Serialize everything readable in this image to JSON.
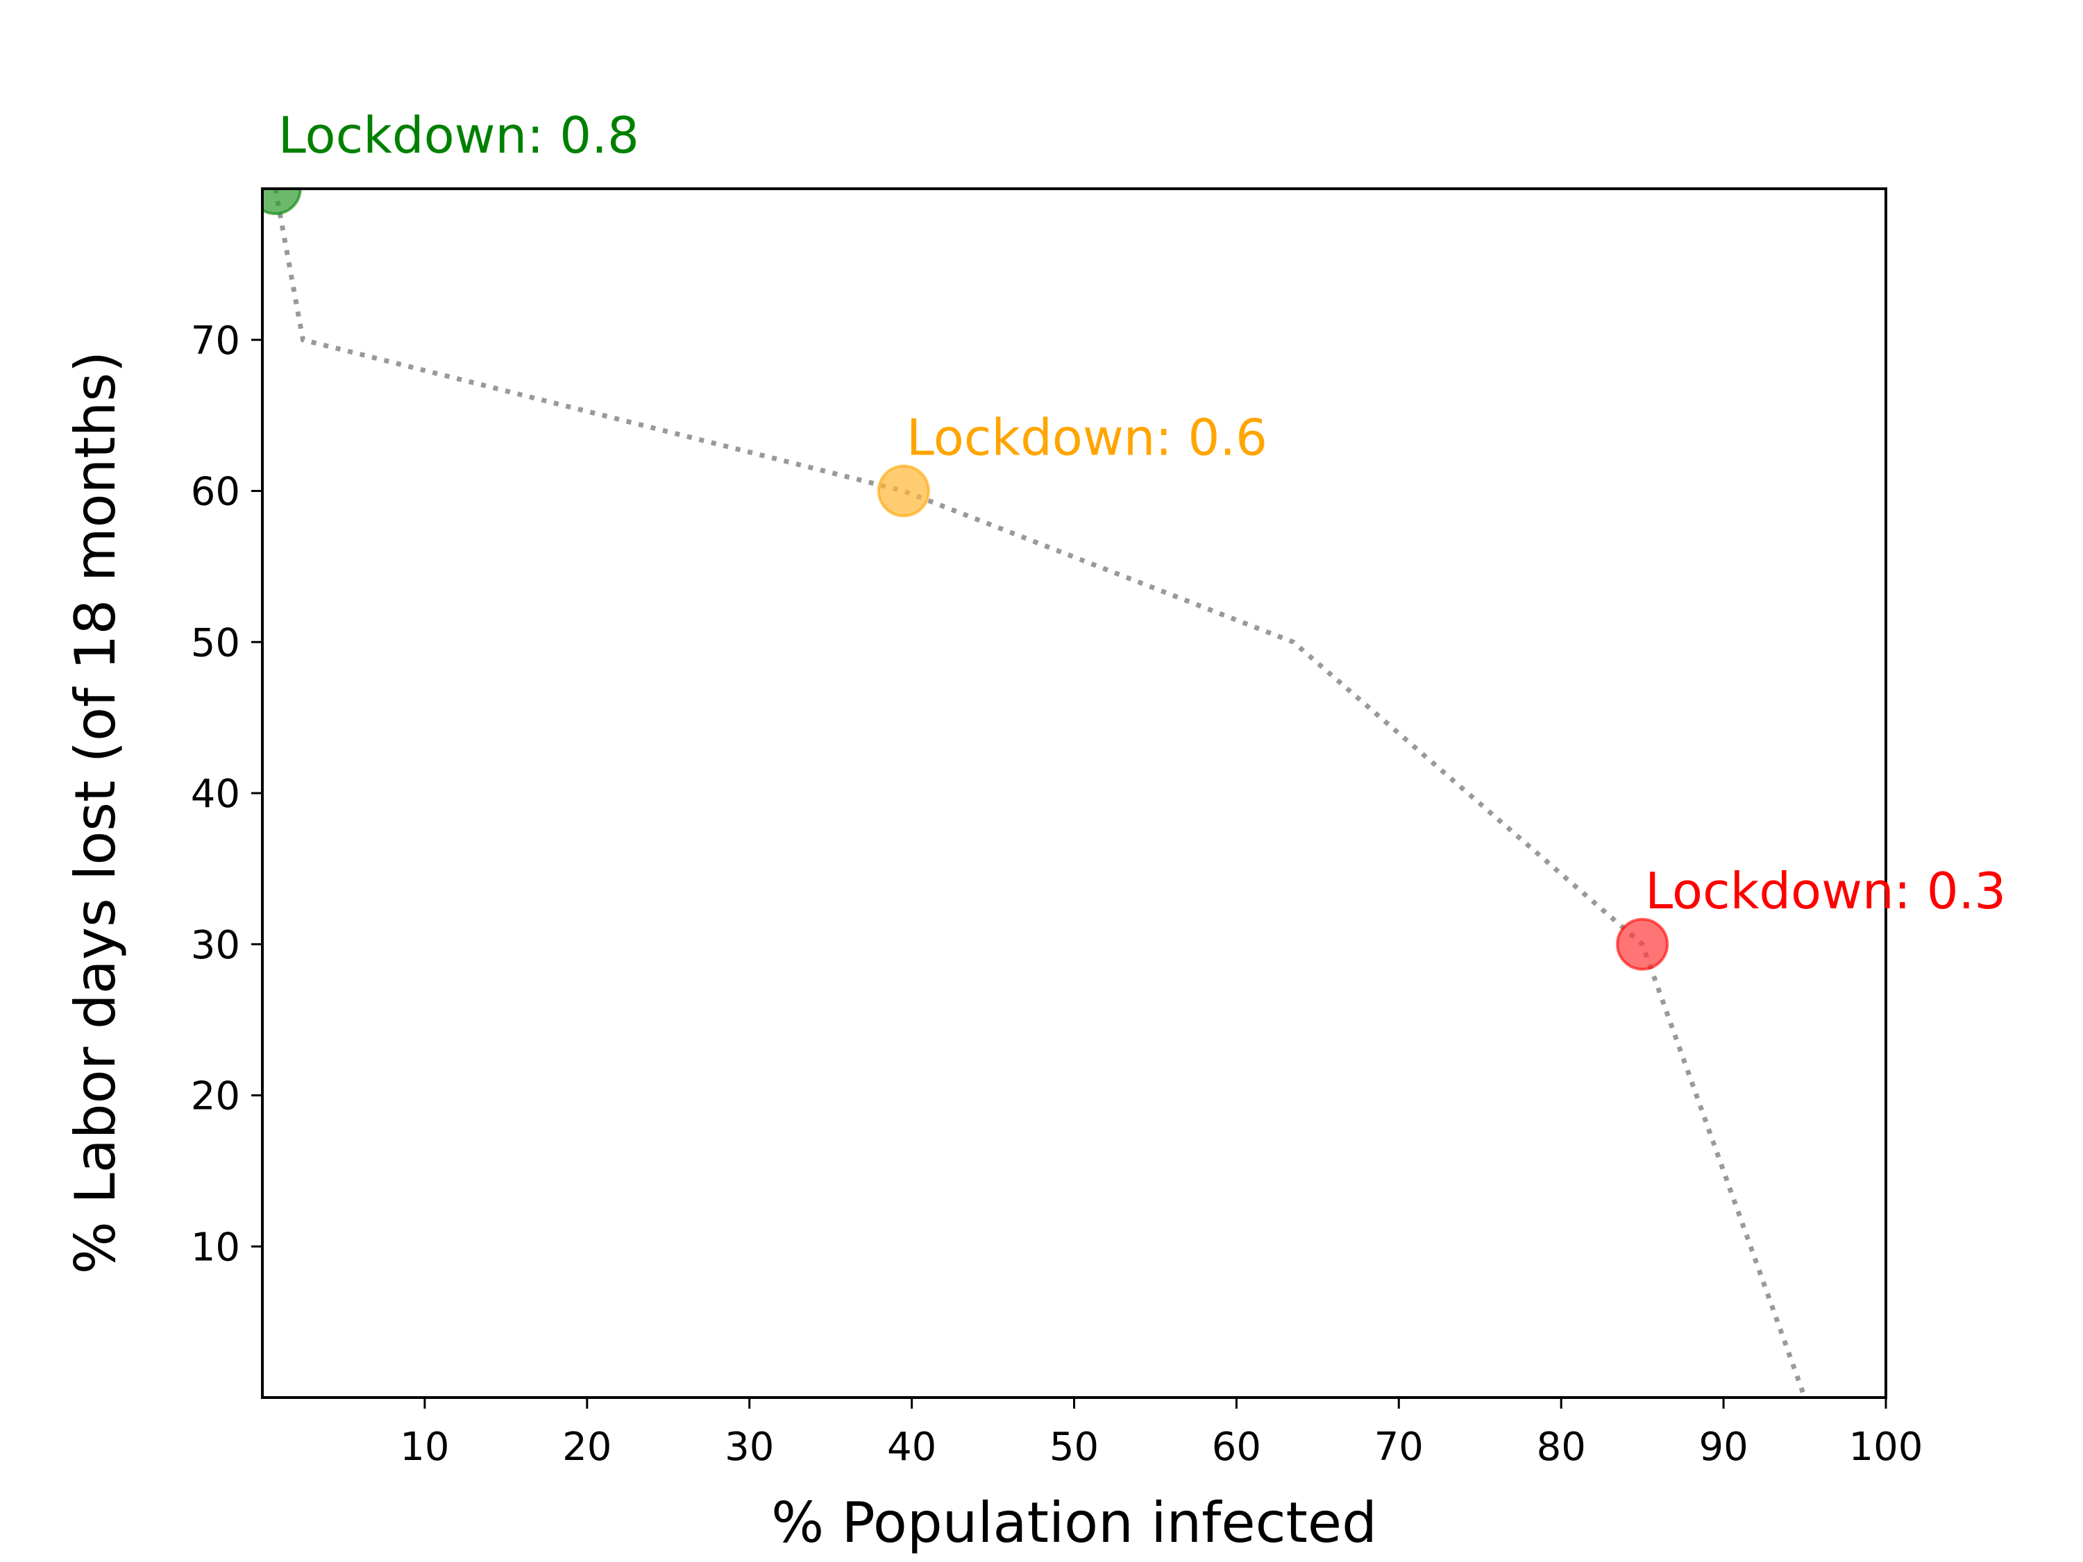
{
  "chart_data": {
    "type": "line",
    "title": "",
    "xlabel": "% Population infected",
    "ylabel": "% Labor days lost (of 18 months)",
    "xlim": [
      0,
      100
    ],
    "ylim": [
      0,
      80
    ],
    "xticks": [
      10,
      20,
      30,
      40,
      50,
      60,
      70,
      80,
      90,
      100
    ],
    "yticks": [
      10,
      20,
      30,
      40,
      50,
      60,
      70
    ],
    "grid": false,
    "series": [
      {
        "name": "frontier",
        "style": "dotted",
        "color": "#999999",
        "x": [
          0.8,
          2.5,
          39.5,
          63.5,
          85.0,
          95.0
        ],
        "y": [
          80,
          70,
          60,
          50,
          30,
          0
        ]
      }
    ],
    "points": [
      {
        "label": "Lockdown: 0.8",
        "x": 0.8,
        "y": 80,
        "color": "#008000",
        "marker_color": "#2e9b2e"
      },
      {
        "label": "Lockdown: 0.6",
        "x": 39.5,
        "y": 60,
        "color": "#ffa500",
        "marker_color": "#ffb833"
      },
      {
        "label": "Lockdown: 0.3",
        "x": 85.0,
        "y": 30,
        "color": "#ff0000",
        "marker_color": "#ff3b3b"
      }
    ]
  }
}
